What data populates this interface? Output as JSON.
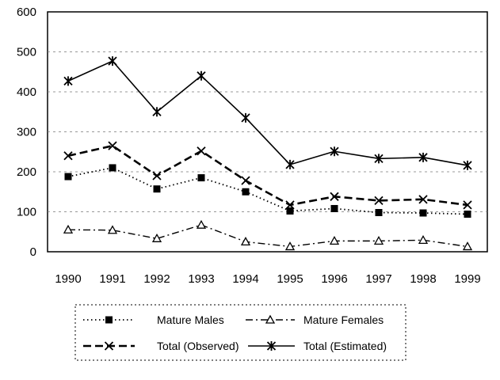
{
  "chart_data": {
    "type": "line",
    "title": "",
    "xlabel": "",
    "ylabel": "",
    "categories": [
      "1990",
      "1991",
      "1992",
      "1993",
      "1994",
      "1995",
      "1996",
      "1997",
      "1998",
      "1999"
    ],
    "ylim": [
      0,
      600
    ],
    "yticks": [
      "0",
      "100",
      "200",
      "300",
      "400",
      "500",
      "600"
    ],
    "grid": true,
    "legend_position": "bottom",
    "series": [
      {
        "name": "Mature Males",
        "values": [
          188,
          210,
          157,
          185,
          150,
          102,
          108,
          98,
          97,
          94
        ],
        "line_style": "dotted",
        "marker": "filled-square"
      },
      {
        "name": "Mature Females",
        "values": [
          55,
          54,
          33,
          67,
          25,
          13,
          27,
          27,
          29,
          13
        ],
        "line_style": "dash-dot",
        "marker": "open-triangle"
      },
      {
        "name": "Total (Observed)",
        "values": [
          240,
          265,
          190,
          252,
          178,
          117,
          138,
          128,
          131,
          117
        ],
        "line_style": "dashed",
        "marker": "x"
      },
      {
        "name": "Total (Estimated)",
        "values": [
          427,
          477,
          350,
          440,
          335,
          218,
          251,
          233,
          236,
          216
        ],
        "line_style": "solid",
        "marker": "star"
      }
    ]
  }
}
